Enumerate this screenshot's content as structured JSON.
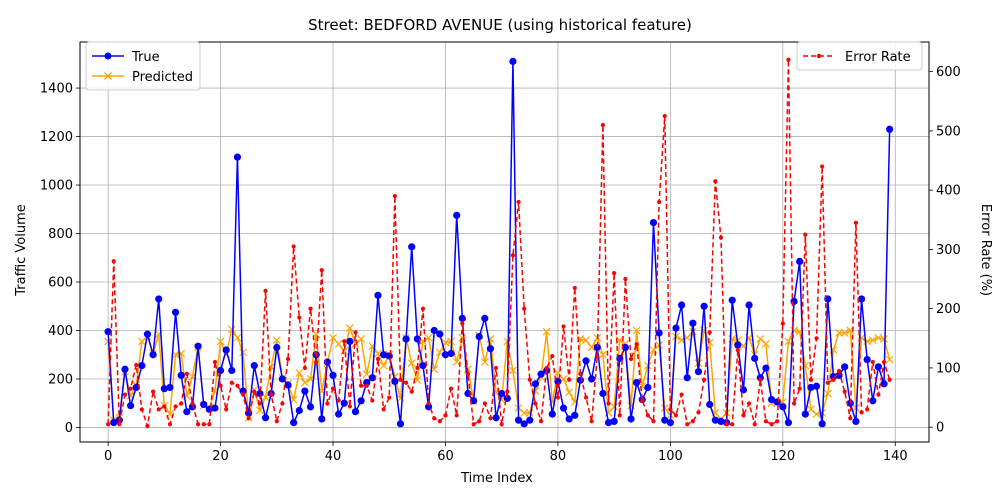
{
  "chart_data": {
    "type": "line",
    "title": "Street: BEDFORD AVENUE (using historical feature)",
    "xlabel": "Time Index",
    "ylabel": "Traffic Volume",
    "y2label": "Error Rate (%)",
    "xlim": [
      -5,
      146
    ],
    "ylim": [
      -60,
      1590
    ],
    "y2lim": [
      -25,
      650
    ],
    "xticks": [
      0,
      20,
      40,
      60,
      80,
      100,
      120,
      140
    ],
    "yticks": [
      0,
      200,
      400,
      600,
      800,
      1000,
      1200,
      1400
    ],
    "y2ticks": [
      0,
      100,
      200,
      300,
      400,
      500,
      600
    ],
    "grid": true,
    "legend_left": {
      "position": "upper-left",
      "entries": [
        "True",
        "Predicted"
      ]
    },
    "legend_right": {
      "position": "upper-right",
      "entries": [
        "Error Rate"
      ]
    },
    "colors": {
      "true": "#0000ff",
      "predicted": "#ffa500",
      "error": "#ff0000",
      "grid": "#b0b0b0"
    },
    "series": [
      {
        "name": "True",
        "axis": "left",
        "marker": "circle",
        "line": "solid",
        "values": [
          395,
          20,
          30,
          240,
          90,
          165,
          255,
          385,
          300,
          530,
          160,
          165,
          475,
          215,
          65,
          85,
          335,
          95,
          75,
          80,
          235,
          320,
          235,
          1115,
          150,
          60,
          255,
          140,
          40,
          140,
          330,
          200,
          175,
          20,
          70,
          150,
          85,
          300,
          35,
          270,
          215,
          55,
          100,
          355,
          65,
          110,
          185,
          205,
          545,
          300,
          295,
          190,
          15,
          365,
          745,
          365,
          255,
          85,
          400,
          385,
          300,
          305,
          875,
          450,
          140,
          110,
          375,
          450,
          325,
          40,
          140,
          120,
          1510,
          30,
          15,
          30,
          180,
          220,
          235,
          55,
          190,
          80,
          35,
          50,
          195,
          275,
          200,
          330,
          140,
          20,
          25,
          285,
          330,
          35,
          185,
          115,
          165,
          845,
          390,
          30,
          20,
          410,
          505,
          205,
          430,
          230,
          500,
          95,
          30,
          25,
          20,
          525,
          340,
          155,
          505,
          285,
          205,
          245,
          115,
          105,
          85,
          20,
          520,
          685,
          55,
          165,
          170,
          15,
          530,
          210,
          215,
          250,
          100,
          25,
          530,
          280,
          110,
          250,
          180,
          1230
        ]
      },
      {
        "name": "Predicted",
        "axis": "left",
        "marker": "x",
        "line": "solid",
        "values": [
          355,
          30,
          40,
          230,
          130,
          175,
          355,
          375,
          305,
          385,
          90,
          55,
          300,
          305,
          130,
          210,
          330,
          90,
          80,
          150,
          355,
          300,
          405,
          370,
          310,
          40,
          155,
          70,
          125,
          250,
          360,
          205,
          180,
          115,
          225,
          185,
          200,
          385,
          150,
          265,
          370,
          345,
          315,
          410,
          345,
          365,
          220,
          335,
          305,
          255,
          300,
          210,
          120,
          370,
          265,
          195,
          355,
          370,
          240,
          310,
          350,
          355,
          270,
          370,
          240,
          110,
          380,
          270,
          365,
          145,
          115,
          355,
          235,
          80,
          60,
          60,
          150,
          210,
          395,
          105,
          225,
          200,
          145,
          105,
          365,
          360,
          330,
          370,
          300,
          60,
          85,
          360,
          345,
          90,
          400,
          170,
          255,
          320,
          340,
          80,
          50,
          375,
          360,
          370,
          395,
          265,
          400,
          350,
          60,
          35,
          60,
          365,
          360,
          335,
          370,
          300,
          365,
          345,
          100,
          100,
          105,
          355,
          400,
          395,
          255,
          75,
          55,
          60,
          140,
          320,
          390,
          390,
          400,
          80,
          370,
          355,
          360,
          370,
          365,
          280
        ]
      },
      {
        "name": "Error Rate",
        "axis": "right",
        "marker": "point",
        "line": "dashed",
        "values": [
          5,
          280,
          5,
          55,
          65,
          105,
          30,
          2,
          60,
          30,
          35,
          5,
          35,
          40,
          90,
          40,
          5,
          5,
          5,
          110,
          70,
          30,
          75,
          70,
          55,
          15,
          60,
          40,
          230,
          55,
          10,
          40,
          115,
          305,
          185,
          100,
          200,
          110,
          265,
          40,
          65,
          45,
          145,
          35,
          160,
          70,
          70,
          45,
          115,
          30,
          50,
          390,
          80,
          75,
          60,
          100,
          200,
          40,
          15,
          10,
          20,
          65,
          20,
          175,
          90,
          5,
          10,
          40,
          15,
          100,
          5,
          60,
          290,
          380,
          200,
          80,
          40,
          10,
          100,
          120,
          50,
          170,
          80,
          235,
          90,
          50,
          10,
          120,
          510,
          40,
          260,
          20,
          250,
          115,
          140,
          45,
          20,
          10,
          380,
          525,
          30,
          20,
          55,
          5,
          10,
          25,
          80,
          160,
          415,
          320,
          5,
          5,
          130,
          20,
          40,
          5,
          80,
          10,
          5,
          10,
          175,
          620,
          40,
          65,
          325,
          80,
          150,
          440,
          75,
          80,
          95,
          60,
          15,
          345,
          25,
          30,
          110,
          55,
          110,
          80
        ]
      }
    ]
  }
}
